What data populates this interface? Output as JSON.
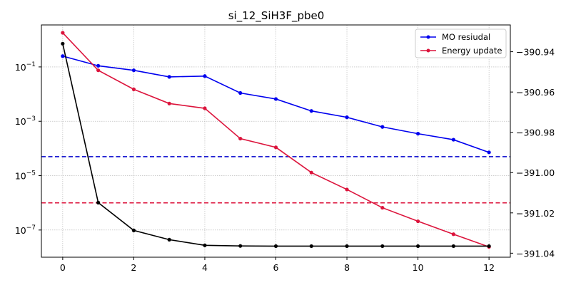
{
  "chart_data": {
    "type": "line",
    "title": "si_12_SiH3F_pbe0",
    "x": [
      0,
      1,
      2,
      3,
      4,
      5,
      6,
      7,
      8,
      9,
      10,
      11,
      12
    ],
    "x_ticks": [
      0,
      2,
      4,
      6,
      8,
      10,
      12
    ],
    "xlim": [
      -0.6,
      12.6
    ],
    "left_axis": {
      "scale": "log",
      "ylim": [
        1e-08,
        3.5
      ],
      "ticks": [
        {
          "value": 0.1,
          "base": "10",
          "exp": "−1"
        },
        {
          "value": 0.001,
          "base": "10",
          "exp": "−3"
        },
        {
          "value": 1e-05,
          "base": "10",
          "exp": "−5"
        },
        {
          "value": 1e-07,
          "base": "10",
          "exp": "−7"
        }
      ]
    },
    "right_axis": {
      "scale": "linear",
      "ylim": [
        -391.042,
        -390.9267
      ],
      "ticks": [
        -390.94,
        -390.96,
        -390.98,
        -391.0,
        -391.02,
        -391.04
      ],
      "tick_labels": [
        "−390.94",
        "−390.96",
        "−390.98",
        "−391.00",
        "−391.02",
        "−391.04"
      ]
    },
    "series": [
      {
        "name": "MO resiudal",
        "axis": "left",
        "color": "#0000ee",
        "values": [
          0.25,
          0.11,
          0.075,
          0.043,
          0.046,
          0.011,
          0.0066,
          0.0024,
          0.0014,
          0.00062,
          0.00035,
          0.00021,
          7.2e-05
        ]
      },
      {
        "name": "Energy update",
        "axis": "left",
        "color": "#dc143c",
        "values": [
          1.8,
          0.075,
          0.015,
          0.0045,
          0.003,
          0.00023,
          0.00011,
          1.3e-05,
          3.1e-06,
          6.6e-07,
          2.1e-07,
          7e-08,
          2.4e-08
        ]
      },
      {
        "axis": "right",
        "color": "#000000",
        "values": [
          -390.936,
          -391.0149,
          -391.0287,
          -391.0333,
          -391.0361,
          -391.0364,
          -391.0365,
          -391.0365,
          -391.0365,
          -391.0365,
          -391.0365,
          -391.0365,
          -391.0365
        ]
      }
    ],
    "threshold_lines": [
      {
        "axis": "left",
        "value": 5e-05,
        "color": "#0000cc",
        "style": "dashed"
      },
      {
        "axis": "left",
        "value": 1e-06,
        "color": "#dc143c",
        "style": "dashed"
      }
    ],
    "grid": true,
    "legend_position": "top-right"
  }
}
